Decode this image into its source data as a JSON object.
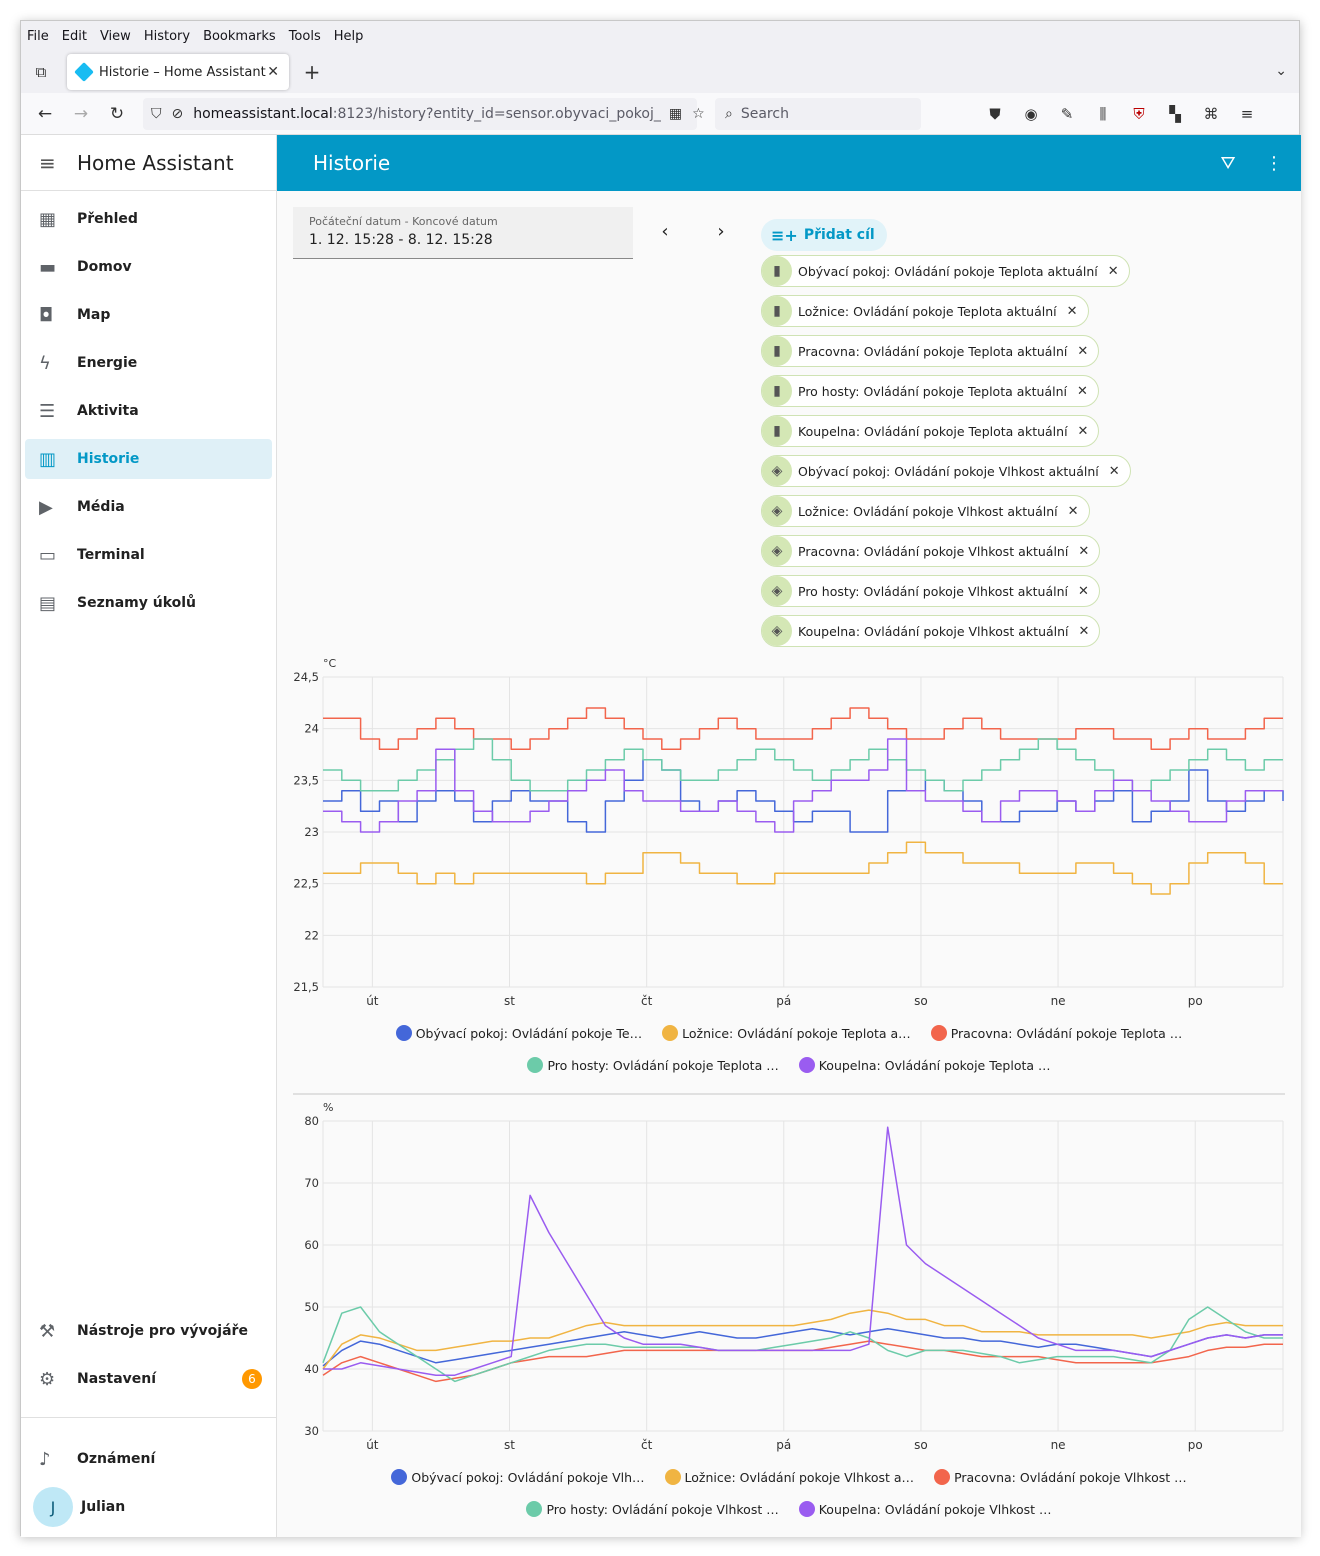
{
  "browser": {
    "menu": [
      "File",
      "Edit",
      "View",
      "History",
      "Bookmarks",
      "Tools",
      "Help"
    ],
    "tab_title": "Historie – Home Assistant",
    "url_host": "homeassistant.local",
    "url_rest": ":8123/history?entity_id=sensor.obyvaci_pokoj_",
    "search_placeholder": "Search"
  },
  "sidebar": {
    "app_name": "Home Assistant",
    "items": [
      {
        "label": "Přehled",
        "icon": "▦"
      },
      {
        "label": "Domov",
        "icon": "▬"
      },
      {
        "label": "Map",
        "icon": "◘"
      },
      {
        "label": "Energie",
        "icon": "ϟ"
      },
      {
        "label": "Aktivita",
        "icon": "☰"
      },
      {
        "label": "Historie",
        "icon": "▥"
      },
      {
        "label": "Média",
        "icon": "▶"
      },
      {
        "label": "Terminal",
        "icon": "▭"
      },
      {
        "label": "Seznamy úkolů",
        "icon": "▤"
      }
    ],
    "dev_tools": "Nástroje pro vývojáře",
    "settings": "Nastavení",
    "settings_badge": "6",
    "notifications": "Oznámení",
    "user": "Julian",
    "user_initial": "J"
  },
  "header": {
    "title": "Historie"
  },
  "date_picker": {
    "label": "Počáteční datum - Koncové datum",
    "value": "1. 12. 15:28 - 8. 12. 15:28"
  },
  "add_target": "Přidat cíl",
  "targets": [
    {
      "label": "Obývací pokoj: Ovládání pokoje Teplota aktuální",
      "icon": "thermometer-icon"
    },
    {
      "label": "Ložnice: Ovládání pokoje Teplota aktuální",
      "icon": "thermometer-icon"
    },
    {
      "label": "Pracovna: Ovládání pokoje Teplota aktuální",
      "icon": "thermometer-icon"
    },
    {
      "label": "Pro hosty: Ovládání pokoje Teplota aktuální",
      "icon": "thermometer-icon"
    },
    {
      "label": "Koupelna: Ovládání pokoje Teplota aktuální",
      "icon": "thermometer-icon"
    },
    {
      "label": "Obývací pokoj: Ovládání pokoje Vlhkost aktuální",
      "icon": "humidity-icon"
    },
    {
      "label": "Ložnice: Ovládání pokoje Vlhkost aktuální",
      "icon": "humidity-icon"
    },
    {
      "label": "Pracovna: Ovládání pokoje Vlhkost aktuální",
      "icon": "humidity-icon"
    },
    {
      "label": "Pro hosty: Ovládání pokoje Vlhkost aktuální",
      "icon": "humidity-icon"
    },
    {
      "label": "Koupelna: Ovládání pokoje Vlhkost aktuální",
      "icon": "humidity-icon"
    }
  ],
  "colors": {
    "accent": "#0398c6",
    "obyvaci": "#4467d9",
    "loznice": "#f0b442",
    "pracovna": "#f2654c",
    "pro_hosty": "#6ccba9",
    "koupelna": "#9a5cf0"
  },
  "chart_data": [
    {
      "type": "line",
      "ylabel": "°C",
      "ylim": [
        21.5,
        24.5
      ],
      "yticks": [
        "24,5",
        "24",
        "23,5",
        "23",
        "22,5",
        "22",
        "21,5"
      ],
      "x_ticks": [
        "út",
        "st",
        "čt",
        "pá",
        "so",
        "ne",
        "po"
      ],
      "legend": [
        "Obývací pokoj: Ovládání pokoje Te…",
        "Ložnice: Ovládání pokoje Teplota a…",
        "Pracovna: Ovládání pokoje Teplota …",
        "Pro hosty: Ovládání pokoje Teplota …",
        "Koupelna: Ovládání pokoje Teplota …"
      ],
      "series": [
        {
          "key": "obyvaci",
          "values": [
            23.3,
            23.4,
            23.2,
            23.3,
            23.1,
            23.3,
            23.4,
            23.3,
            23.1,
            23.3,
            23.4,
            23.3,
            23.3,
            23.1,
            23.0,
            23.3,
            23.5,
            23.7,
            23.6,
            23.3,
            23.2,
            23.3,
            23.4,
            23.3,
            23.2,
            23.1,
            23.2,
            23.2,
            23.0,
            23.0,
            23.4,
            23.4,
            23.5,
            23.4,
            23.3,
            23.1,
            23.1,
            23.2,
            23.2,
            23.3,
            23.2,
            23.3,
            23.4,
            23.1,
            23.2,
            23.3,
            23.6,
            23.3,
            23.2,
            23.3,
            23.4,
            23.3
          ]
        },
        {
          "key": "loznice",
          "values": [
            22.6,
            22.6,
            22.7,
            22.7,
            22.6,
            22.5,
            22.6,
            22.5,
            22.6,
            22.6,
            22.6,
            22.6,
            22.6,
            22.6,
            22.5,
            22.6,
            22.6,
            22.8,
            22.8,
            22.7,
            22.6,
            22.6,
            22.5,
            22.5,
            22.6,
            22.6,
            22.6,
            22.6,
            22.6,
            22.7,
            22.8,
            22.9,
            22.8,
            22.8,
            22.7,
            22.7,
            22.7,
            22.6,
            22.6,
            22.6,
            22.7,
            22.7,
            22.6,
            22.5,
            22.4,
            22.5,
            22.7,
            22.8,
            22.8,
            22.7,
            22.5,
            22.5
          ]
        },
        {
          "key": "pracovna",
          "values": [
            24.1,
            24.1,
            23.9,
            23.8,
            23.9,
            24.0,
            24.1,
            24.0,
            23.9,
            23.9,
            23.8,
            23.9,
            24.0,
            24.1,
            24.2,
            24.1,
            24.0,
            23.9,
            23.8,
            23.9,
            24.0,
            24.1,
            24.0,
            23.9,
            23.9,
            23.9,
            24.0,
            24.1,
            24.2,
            24.1,
            24.0,
            23.9,
            23.9,
            24.0,
            24.1,
            24.0,
            23.9,
            23.9,
            23.9,
            23.9,
            24.0,
            24.0,
            23.9,
            23.9,
            23.8,
            23.9,
            24.0,
            23.9,
            23.9,
            24.0,
            24.1,
            24.1
          ]
        },
        {
          "key": "pro_hosty",
          "values": [
            23.6,
            23.5,
            23.4,
            23.4,
            23.5,
            23.6,
            23.7,
            23.8,
            23.9,
            23.7,
            23.5,
            23.4,
            23.4,
            23.5,
            23.6,
            23.7,
            23.8,
            23.7,
            23.6,
            23.5,
            23.5,
            23.6,
            23.7,
            23.8,
            23.7,
            23.6,
            23.5,
            23.6,
            23.7,
            23.8,
            23.7,
            23.6,
            23.5,
            23.4,
            23.5,
            23.6,
            23.7,
            23.8,
            23.9,
            23.8,
            23.7,
            23.6,
            23.5,
            23.4,
            23.5,
            23.6,
            23.7,
            23.8,
            23.7,
            23.6,
            23.7,
            23.7
          ]
        },
        {
          "key": "koupelna",
          "values": [
            23.2,
            23.1,
            23.0,
            23.1,
            23.3,
            23.4,
            23.8,
            23.4,
            23.2,
            23.1,
            23.1,
            23.2,
            23.3,
            23.4,
            23.5,
            23.6,
            23.4,
            23.3,
            23.3,
            23.2,
            23.2,
            23.3,
            23.2,
            23.1,
            23.0,
            23.3,
            23.4,
            23.5,
            23.5,
            23.6,
            23.9,
            23.4,
            23.3,
            23.3,
            23.2,
            23.1,
            23.3,
            23.4,
            23.4,
            23.3,
            23.2,
            23.4,
            23.5,
            23.4,
            23.3,
            23.2,
            23.1,
            23.1,
            23.3,
            23.4,
            23.4,
            23.4
          ]
        }
      ]
    },
    {
      "type": "line",
      "ylabel": "%",
      "ylim": [
        30,
        80
      ],
      "yticks": [
        "80",
        "70",
        "60",
        "50",
        "40",
        "30"
      ],
      "x_ticks": [
        "út",
        "st",
        "čt",
        "pá",
        "so",
        "ne",
        "po"
      ],
      "legend": [
        "Obývací pokoj: Ovládání pokoje Vlh…",
        "Ložnice: Ovládání pokoje Vlhkost a…",
        "Pracovna: Ovládání pokoje Vlhkost …",
        "Pro hosty: Ovládání pokoje Vlhkost …",
        "Koupelna: Ovládání pokoje Vlhkost …"
      ],
      "series": [
        {
          "key": "obyvaci",
          "values": [
            40.5,
            43,
            44.5,
            44,
            43,
            42,
            41,
            41.5,
            42,
            42.5,
            43,
            43.5,
            44,
            44.5,
            45,
            45.5,
            46,
            45.5,
            45,
            45.5,
            46,
            45.5,
            45,
            45,
            45.5,
            46,
            46.5,
            46,
            45.5,
            46,
            46.5,
            46,
            45.5,
            45,
            45,
            44.5,
            44.5,
            44,
            43.5,
            44,
            44,
            43.5,
            43,
            42.5,
            42,
            43,
            44,
            45,
            45.5,
            45,
            45.5,
            45.5
          ]
        },
        {
          "key": "loznice",
          "values": [
            40,
            44,
            45.5,
            45,
            44,
            43,
            43,
            43.5,
            44,
            44.5,
            44.5,
            45,
            45,
            46,
            47,
            47.5,
            47,
            47,
            47,
            47,
            47,
            47,
            47,
            47,
            47,
            47,
            47.5,
            48,
            49,
            49.5,
            49,
            48,
            48,
            47,
            47,
            46,
            46,
            46,
            45.5,
            45.5,
            45.5,
            45.5,
            45.5,
            45.5,
            45,
            45.5,
            46,
            47,
            47.5,
            47,
            47,
            47
          ]
        },
        {
          "key": "pracovna",
          "values": [
            39,
            41,
            42,
            41,
            40,
            39,
            38,
            38.5,
            39,
            40,
            41,
            41.5,
            42,
            42,
            42,
            42.5,
            43,
            43,
            43,
            43,
            43,
            43,
            43,
            43,
            43,
            43,
            43,
            43.5,
            44,
            44.5,
            44,
            43.5,
            43,
            43,
            42.5,
            42,
            42,
            42,
            42,
            41.5,
            41,
            41,
            41,
            41,
            41,
            41.5,
            42,
            43,
            43.5,
            43.5,
            44,
            44
          ]
        },
        {
          "key": "pro_hosty",
          "values": [
            41,
            49,
            50,
            46,
            44,
            42,
            40,
            38,
            39,
            40,
            41,
            42,
            43,
            43.5,
            44,
            44,
            43.5,
            43.5,
            43.5,
            43.5,
            43.5,
            43,
            43,
            43,
            43.5,
            44,
            44.5,
            45,
            46,
            45,
            43,
            42,
            43,
            43,
            43,
            42.5,
            42,
            41,
            41.5,
            42,
            42,
            42,
            42,
            41.5,
            41,
            43,
            48,
            50,
            48,
            46,
            45,
            45
          ]
        },
        {
          "key": "koupelna",
          "values": [
            40,
            40,
            41,
            40.5,
            40,
            39.5,
            39,
            39,
            40,
            41,
            42,
            68,
            62,
            57,
            52,
            47,
            45,
            44,
            44,
            44,
            43.5,
            43,
            43,
            43,
            43,
            43,
            43,
            43,
            43,
            44,
            79,
            60,
            57,
            55,
            53,
            51,
            49,
            47,
            45,
            44,
            43,
            43,
            43,
            42.5,
            42,
            43,
            44,
            45,
            45.5,
            45,
            45.5,
            45.5
          ]
        }
      ]
    }
  ]
}
